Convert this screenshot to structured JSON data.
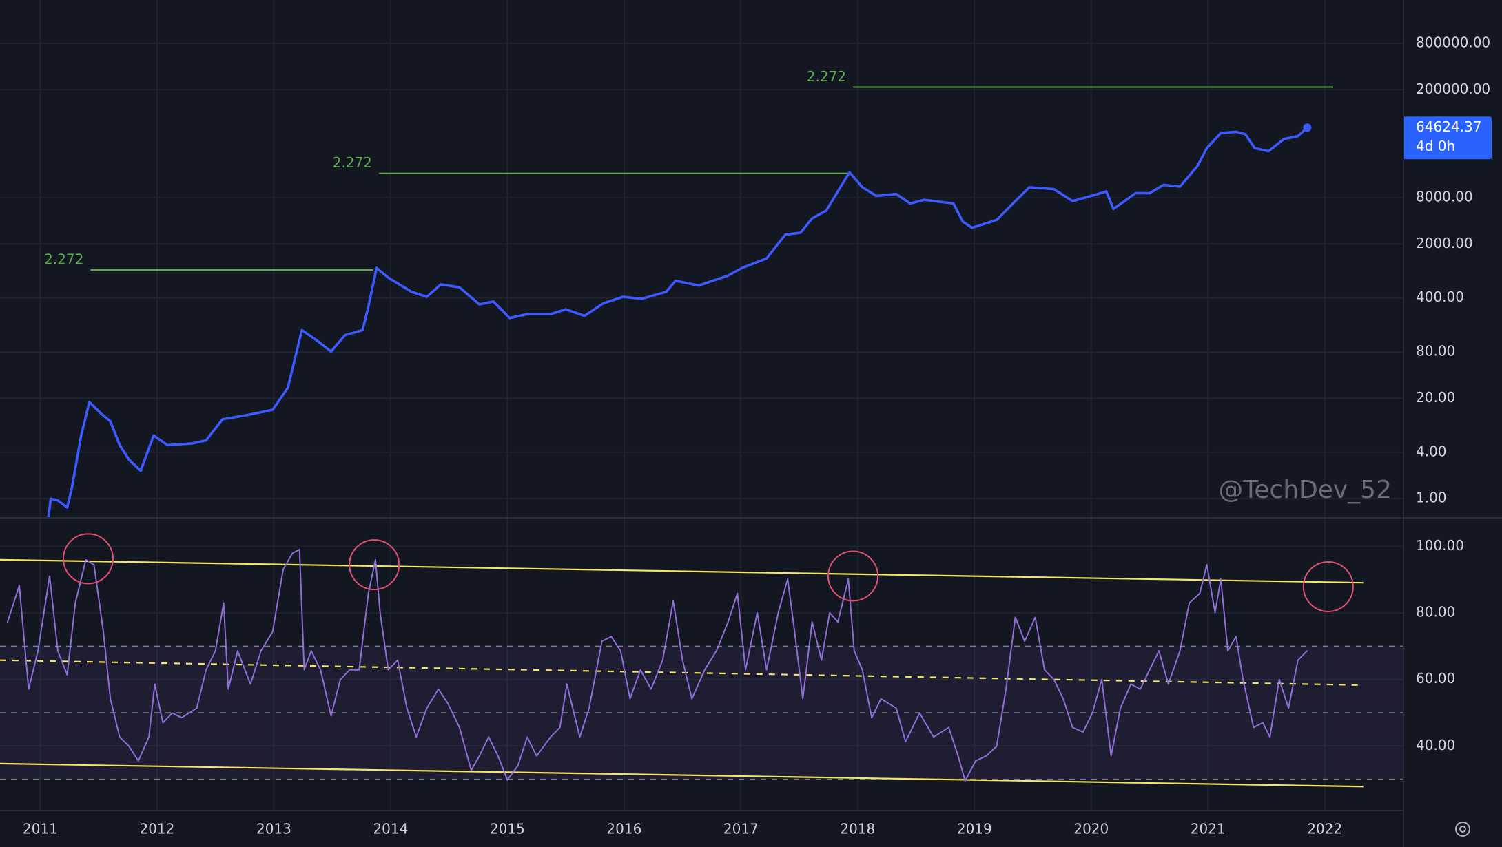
{
  "chart_data": [
    {
      "type": "line",
      "log_scale": true,
      "grid": true,
      "xlim": [
        2010.655,
        2022.674
      ],
      "xticks": [
        2011,
        2012,
        2013,
        2014,
        2015,
        2016,
        2017,
        2018,
        2019,
        2020,
        2021,
        2022
      ],
      "ylim": [
        0.565,
        2910000
      ],
      "yticks": [
        {
          "value": 800000,
          "label": "800000.00"
        },
        {
          "value": 200000,
          "label": "200000.00"
        },
        {
          "value": 8000,
          "label": "8000.00"
        },
        {
          "value": 2000,
          "label": "2000.00"
        },
        {
          "value": 400,
          "label": "400.00"
        },
        {
          "value": 80,
          "label": "80.00"
        },
        {
          "value": 20,
          "label": "20.00"
        },
        {
          "value": 4,
          "label": "4.00"
        },
        {
          "value": 1,
          "label": "1.00"
        }
      ],
      "x": [
        2011.07,
        2011.09,
        2011.15,
        2011.23,
        2011.27,
        2011.35,
        2011.42,
        2011.52,
        2011.6,
        2011.68,
        2011.76,
        2011.86,
        2011.97,
        2012.09,
        2012.3,
        2012.42,
        2012.56,
        2012.79,
        2012.99,
        2013.12,
        2013.24,
        2013.36,
        2013.49,
        2013.61,
        2013.76,
        2013.81,
        2013.88,
        2013.98,
        2014.18,
        2014.31,
        2014.43,
        2014.59,
        2014.76,
        2014.88,
        2015.02,
        2015.17,
        2015.37,
        2015.5,
        2015.66,
        2015.82,
        2015.99,
        2016.15,
        2016.36,
        2016.44,
        2016.64,
        2016.89,
        2017.01,
        2017.22,
        2017.38,
        2017.51,
        2017.61,
        2017.73,
        2017.83,
        2017.93,
        2018.04,
        2018.16,
        2018.33,
        2018.45,
        2018.57,
        2018.82,
        2018.9,
        2018.98,
        2019.19,
        2019.35,
        2019.47,
        2019.68,
        2019.84,
        2020.01,
        2020.13,
        2020.19,
        2020.38,
        2020.5,
        2020.62,
        2020.76,
        2020.91,
        2020.99,
        2021.11,
        2021.24,
        2021.32,
        2021.4,
        2021.52,
        2021.65,
        2021.77,
        2021.85
      ],
      "series": [
        {
          "color": "#3d5afe",
          "values": [
            0.58,
            1.0,
            0.95,
            0.77,
            1.37,
            6.6,
            17.9,
            12.7,
            10.1,
            4.95,
            3.2,
            2.3,
            6.6,
            4.95,
            5.2,
            5.7,
            10.7,
            12.3,
            14.2,
            27.5,
            153,
            115,
            81,
            132,
            153,
            310,
            980,
            735,
            480,
            414,
            600,
            550,
            330,
            360,
            220,
            247,
            247,
            285,
            235,
            340,
            414,
            390,
            480,
            670,
            580,
            780,
            980,
            1300,
            2650,
            2800,
            4300,
            5400,
            9600,
            17000,
            10900,
            8400,
            8900,
            6700,
            7500,
            6700,
            3900,
            3250,
            4100,
            7200,
            10900,
            10300,
            7200,
            8500,
            9600,
            5700,
            9100,
            9100,
            11700,
            11100,
            20500,
            35000,
            55000,
            57000,
            53000,
            35000,
            32000,
            46000,
            50000,
            64624.37
          ]
        }
      ],
      "last_value_label": "64624.37",
      "countdown": "4d 0h",
      "fib_levels": [
        {
          "label": "2.272",
          "value": 923,
          "x": [
            2011.43,
            2013.85
          ],
          "color": "#5fae4e"
        },
        {
          "label": "2.272",
          "value": 16500,
          "x": [
            2013.9,
            2017.92
          ],
          "color": "#5fae4e"
        },
        {
          "label": "2.272",
          "value": 216000,
          "x": [
            2017.96,
            2022.07
          ],
          "color": "#5fae4e"
        }
      ],
      "watermark": "@TechDev_52"
    },
    {
      "type": "line",
      "grid": true,
      "xlim": [
        2010.655,
        2022.674
      ],
      "xticks": [
        2011,
        2012,
        2013,
        2014,
        2015,
        2016,
        2017,
        2018,
        2019,
        2020,
        2021,
        2022
      ],
      "ylim": [
        20.6,
        108.6
      ],
      "yticks": [
        {
          "value": 100,
          "label": "100.00"
        },
        {
          "value": 80,
          "label": "80.00"
        },
        {
          "value": 60,
          "label": "60.00"
        },
        {
          "value": 40,
          "label": "40.00"
        }
      ],
      "x": [
        2010.72,
        2010.82,
        2010.9,
        2010.98,
        2011.08,
        2011.15,
        2011.23,
        2011.3,
        2011.39,
        2011.46,
        2011.54,
        2011.6,
        2011.68,
        2011.76,
        2011.84,
        2011.93,
        2011.98,
        2012.05,
        2012.13,
        2012.21,
        2012.34,
        2012.42,
        2012.5,
        2012.57,
        2012.61,
        2012.69,
        2012.8,
        2012.89,
        2012.99,
        2013.08,
        2013.16,
        2013.22,
        2013.26,
        2013.32,
        2013.4,
        2013.49,
        2013.57,
        2013.65,
        2013.73,
        2013.81,
        2013.87,
        2013.91,
        2013.98,
        2014.06,
        2014.14,
        2014.22,
        2014.31,
        2014.41,
        2014.49,
        2014.59,
        2014.69,
        2014.76,
        2014.84,
        2014.92,
        2015.0,
        2015.09,
        2015.17,
        2015.25,
        2015.37,
        2015.45,
        2015.51,
        2015.62,
        2015.7,
        2015.81,
        2015.89,
        2015.97,
        2016.05,
        2016.14,
        2016.23,
        2016.33,
        2016.42,
        2016.5,
        2016.58,
        2016.69,
        2016.79,
        2016.89,
        2016.97,
        2017.04,
        2017.14,
        2017.22,
        2017.32,
        2017.4,
        2017.46,
        2017.53,
        2017.61,
        2017.69,
        2017.76,
        2017.83,
        2017.92,
        2017.97,
        2018.04,
        2018.12,
        2018.2,
        2018.33,
        2018.41,
        2018.53,
        2018.65,
        2018.78,
        2018.86,
        2018.92,
        2019.01,
        2019.1,
        2019.19,
        2019.27,
        2019.35,
        2019.43,
        2019.52,
        2019.6,
        2019.68,
        2019.76,
        2019.84,
        2019.93,
        2020.01,
        2020.09,
        2020.17,
        2020.25,
        2020.34,
        2020.42,
        2020.5,
        2020.58,
        2020.66,
        2020.76,
        2020.84,
        2020.93,
        2020.99,
        2021.06,
        2021.11,
        2021.17,
        2021.24,
        2021.3,
        2021.39,
        2021.47,
        2021.53,
        2021.61,
        2021.69,
        2021.77,
        2021.85
      ],
      "series": [
        {
          "color": "#8e6fd8",
          "values": [
            77.3,
            88.2,
            57.1,
            68.6,
            91.1,
            68.6,
            61.4,
            83.0,
            96.0,
            94.5,
            74.4,
            54.2,
            42.7,
            39.9,
            35.5,
            42.7,
            58.6,
            47.0,
            49.9,
            48.5,
            51.4,
            62.9,
            68.6,
            83.0,
            57.1,
            68.6,
            58.6,
            68.6,
            74.4,
            93.1,
            98.0,
            99.1,
            62.9,
            68.6,
            62.9,
            49.1,
            60.0,
            62.9,
            62.9,
            85.9,
            96.0,
            80.1,
            62.9,
            65.8,
            51.4,
            42.7,
            51.4,
            57.1,
            52.8,
            45.6,
            32.7,
            37.0,
            42.7,
            37.0,
            29.8,
            34.1,
            42.7,
            37.0,
            42.7,
            45.6,
            58.6,
            42.7,
            51.4,
            71.5,
            72.9,
            68.6,
            54.2,
            62.9,
            57.1,
            65.8,
            83.6,
            65.8,
            54.2,
            62.9,
            68.6,
            77.3,
            85.9,
            62.9,
            80.1,
            62.9,
            80.1,
            90.2,
            74.4,
            54.2,
            77.3,
            65.8,
            80.1,
            77.3,
            90.2,
            68.6,
            62.9,
            48.5,
            54.2,
            51.4,
            41.3,
            49.9,
            42.7,
            45.6,
            37.0,
            29.5,
            35.5,
            37.0,
            39.9,
            57.1,
            78.7,
            71.5,
            78.7,
            62.9,
            60.0,
            54.2,
            45.6,
            44.2,
            49.9,
            60.0,
            37.0,
            51.4,
            58.6,
            57.1,
            62.9,
            68.6,
            58.6,
            68.6,
            83.0,
            85.9,
            94.5,
            80.1,
            90.2,
            68.6,
            72.9,
            60.0,
            45.6,
            47.0,
            42.7,
            60.0,
            51.4,
            65.8,
            68.6
          ]
        }
      ],
      "levels": [
        70,
        50,
        30
      ],
      "trend_lines": [
        {
          "x": [
            2010.655,
            2022.33
          ],
          "y": [
            96.0,
            89.1
          ],
          "color": "#f5e663",
          "dashed": false
        },
        {
          "x": [
            2010.655,
            2022.33
          ],
          "y": [
            65.8,
            58.3
          ],
          "color": "#f5e663",
          "dashed": true
        },
        {
          "x": [
            2010.655,
            2022.33
          ],
          "y": [
            34.7,
            27.8
          ],
          "color": "#f5e663",
          "dashed": false
        }
      ],
      "circles": [
        {
          "x": 2011.41,
          "y": 96.3
        },
        {
          "x": 2013.86,
          "y": 94.5
        },
        {
          "x": 2017.96,
          "y": 91.1
        },
        {
          "x": 2022.03,
          "y": 87.9
        }
      ],
      "circle_color": "#e0506e"
    }
  ]
}
